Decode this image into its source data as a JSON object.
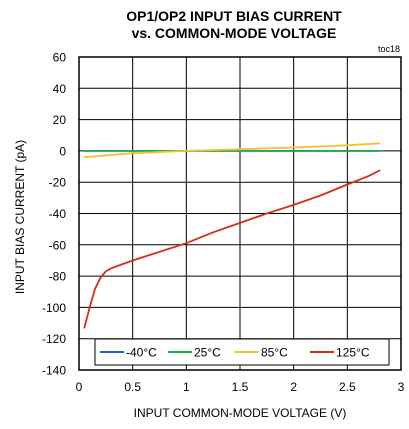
{
  "chart_data": {
    "type": "line",
    "title_line1": "OP1/OP2 INPUT BIAS CURRENT",
    "title_line2": "vs. COMMON-MODE VOLTAGE",
    "tag": "toc18",
    "xlabel": "INPUT COMMON-MODE VOLTAGE (V)",
    "ylabel": "INPUT BIAS CURRENT (pA)",
    "xlim": [
      0,
      3
    ],
    "ylim": [
      -140,
      60
    ],
    "x_ticks": [
      0,
      0.5,
      1,
      1.5,
      2,
      2.5,
      3
    ],
    "x_tick_labels": [
      "0",
      "0.5",
      "1",
      "1.5",
      "2",
      "2.5",
      "3"
    ],
    "y_ticks": [
      60,
      40,
      20,
      0,
      -20,
      -40,
      -60,
      -80,
      -100,
      -120,
      -140
    ],
    "y_tick_labels": [
      "60",
      "40",
      "20",
      "0",
      "-20",
      "-40",
      "-60",
      "-80",
      "-100",
      "-120",
      "-140"
    ],
    "grid": true,
    "legend_position": "bottom",
    "series": [
      {
        "name": "-40°C",
        "color": "#1a5fd6",
        "x": [
          0.05,
          2.8
        ],
        "y": [
          0,
          0
        ]
      },
      {
        "name": "25°C",
        "color": "#1aab4a",
        "x": [
          0.05,
          2.8
        ],
        "y": [
          0,
          0
        ]
      },
      {
        "name": "85°C",
        "color": "#f2c230",
        "x": [
          0.05,
          0.5,
          1.0,
          1.5,
          2.0,
          2.5,
          2.8
        ],
        "y": [
          -4,
          -1.5,
          0,
          1,
          2.2,
          3.6,
          4.8
        ]
      },
      {
        "name": "125°C",
        "color": "#d32f17",
        "x": [
          0.05,
          0.1,
          0.15,
          0.2,
          0.25,
          0.3,
          0.4,
          0.5,
          0.75,
          1.0,
          1.25,
          1.5,
          1.75,
          2.0,
          2.25,
          2.5,
          2.7,
          2.8
        ],
        "y": [
          -113,
          -100,
          -88,
          -81,
          -77,
          -75,
          -72.5,
          -70,
          -64.5,
          -59,
          -52,
          -46,
          -40,
          -34.5,
          -28.5,
          -21.5,
          -16,
          -12.5
        ]
      }
    ]
  }
}
